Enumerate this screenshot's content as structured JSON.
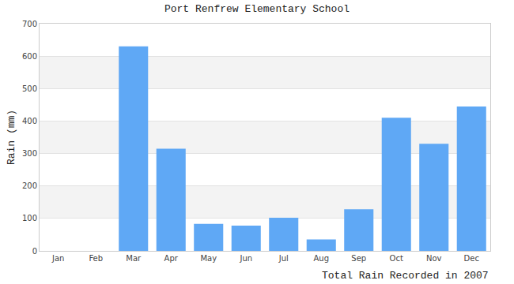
{
  "chart_data": {
    "type": "bar",
    "title": "Port Renfrew Elementary School",
    "x_label": "Total Rain Recorded in 2007",
    "y_label": "Rain (mm)",
    "categories": [
      "Jan",
      "Feb",
      "Mar",
      "Apr",
      "May",
      "Jun",
      "Jul",
      "Aug",
      "Sep",
      "Oct",
      "Nov",
      "Dec"
    ],
    "values": [
      0,
      0,
      630,
      315,
      83,
      78,
      102,
      35,
      128,
      410,
      330,
      445
    ],
    "color": "#5fa8f5",
    "ylim": [
      0,
      700
    ],
    "yticks": [
      0,
      100,
      200,
      300,
      400,
      500,
      600,
      700
    ],
    "grid": true
  }
}
